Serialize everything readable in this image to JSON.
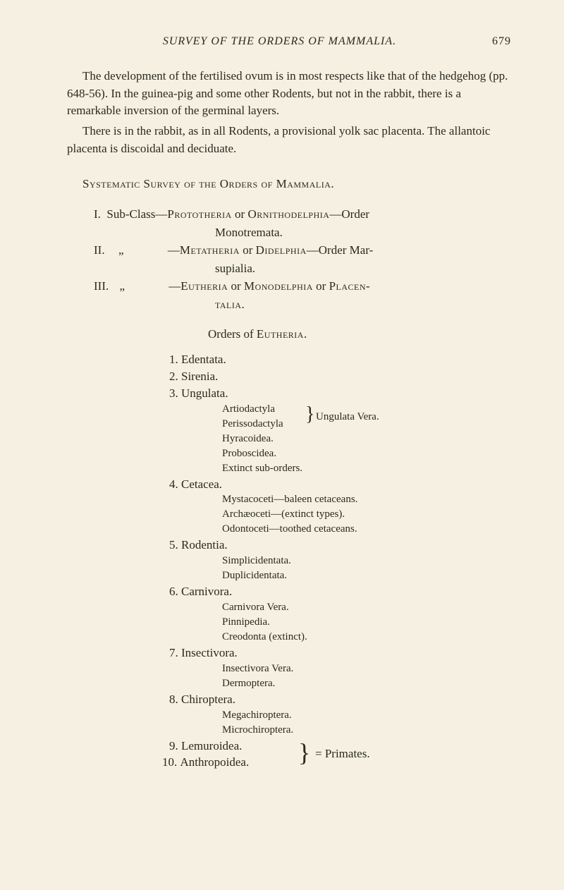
{
  "header": {
    "title": "SURVEY OF THE ORDERS OF MAMMALIA.",
    "page_number": "679"
  },
  "paragraphs": {
    "p1": "The development of the fertilised ovum is in most respects like that of the hedgehog (pp. 648-56). In the guinea-pig and some other Rodents, but not in the rabbit, there is a remarkable inversion of the germinal layers.",
    "p2": "There is in the rabbit, as in all Rodents, a provisional yolk sac placenta. The allantoic placenta is discoidal and deciduate."
  },
  "heading1": "Systematic Survey of the Orders of Mammalia.",
  "subclasses": {
    "roman1": "I.",
    "roman2": "II.",
    "roman3": "III.",
    "label": "Sub-Class—",
    "ditto": "„",
    "em_dash": "—",
    "proto": "Prototheria",
    "or1": " or ",
    "ornith": "Ornithodelphia",
    "order1": "—Order",
    "mono": "Monotremata.",
    "meta": "Metatheria",
    "or2": " or ",
    "didel": "Didelphia",
    "order2": "—Order Mar-",
    "marsup": "supialia.",
    "euth": "Eutheria",
    "or3": " or ",
    "monod": "Monodelphia",
    "or4": " or ",
    "placen": "Placen-",
    "talia": "talia."
  },
  "orders_heading": "Orders of ",
  "orders_heading_sc": "Eutheria.",
  "orders": {
    "o1": {
      "num": "1.",
      "name": "Edentata."
    },
    "o2": {
      "num": "2.",
      "name": "Sirenia."
    },
    "o3": {
      "num": "3.",
      "name": "Ungulata.",
      "subs": {
        "s1": "Artiodactyla",
        "s2": "Perissodactyla",
        "brace_text": "Ungulata Vera.",
        "s3": "Hyracoidea.",
        "s4": "Proboscidea.",
        "s5": "Extinct sub-orders."
      }
    },
    "o4": {
      "num": "4.",
      "name": "Cetacea.",
      "subs": {
        "s1": "Mystacoceti—baleen cetaceans.",
        "s2": "Archæoceti—(extinct types).",
        "s3": "Odontoceti—toothed cetaceans."
      }
    },
    "o5": {
      "num": "5.",
      "name": "Rodentia.",
      "subs": {
        "s1": "Simplicidentata.",
        "s2": "Duplicidentata."
      }
    },
    "o6": {
      "num": "6.",
      "name": "Carnivora.",
      "subs": {
        "s1": "Carnivora Vera.",
        "s2": "Pinnipedia.",
        "s3": "Creodonta (extinct)."
      }
    },
    "o7": {
      "num": "7.",
      "name": "Insectivora.",
      "subs": {
        "s1": "Insectivora Vera.",
        "s2": "Dermoptera."
      }
    },
    "o8": {
      "num": "8.",
      "name": "Chiroptera.",
      "subs": {
        "s1": "Megachiroptera.",
        "s2": "Microchiroptera."
      }
    },
    "o9": {
      "num": "9.",
      "name": "Lemuroidea."
    },
    "o10": {
      "num": "10.",
      "name": "Anthropoidea."
    },
    "primates": "= Primates."
  }
}
